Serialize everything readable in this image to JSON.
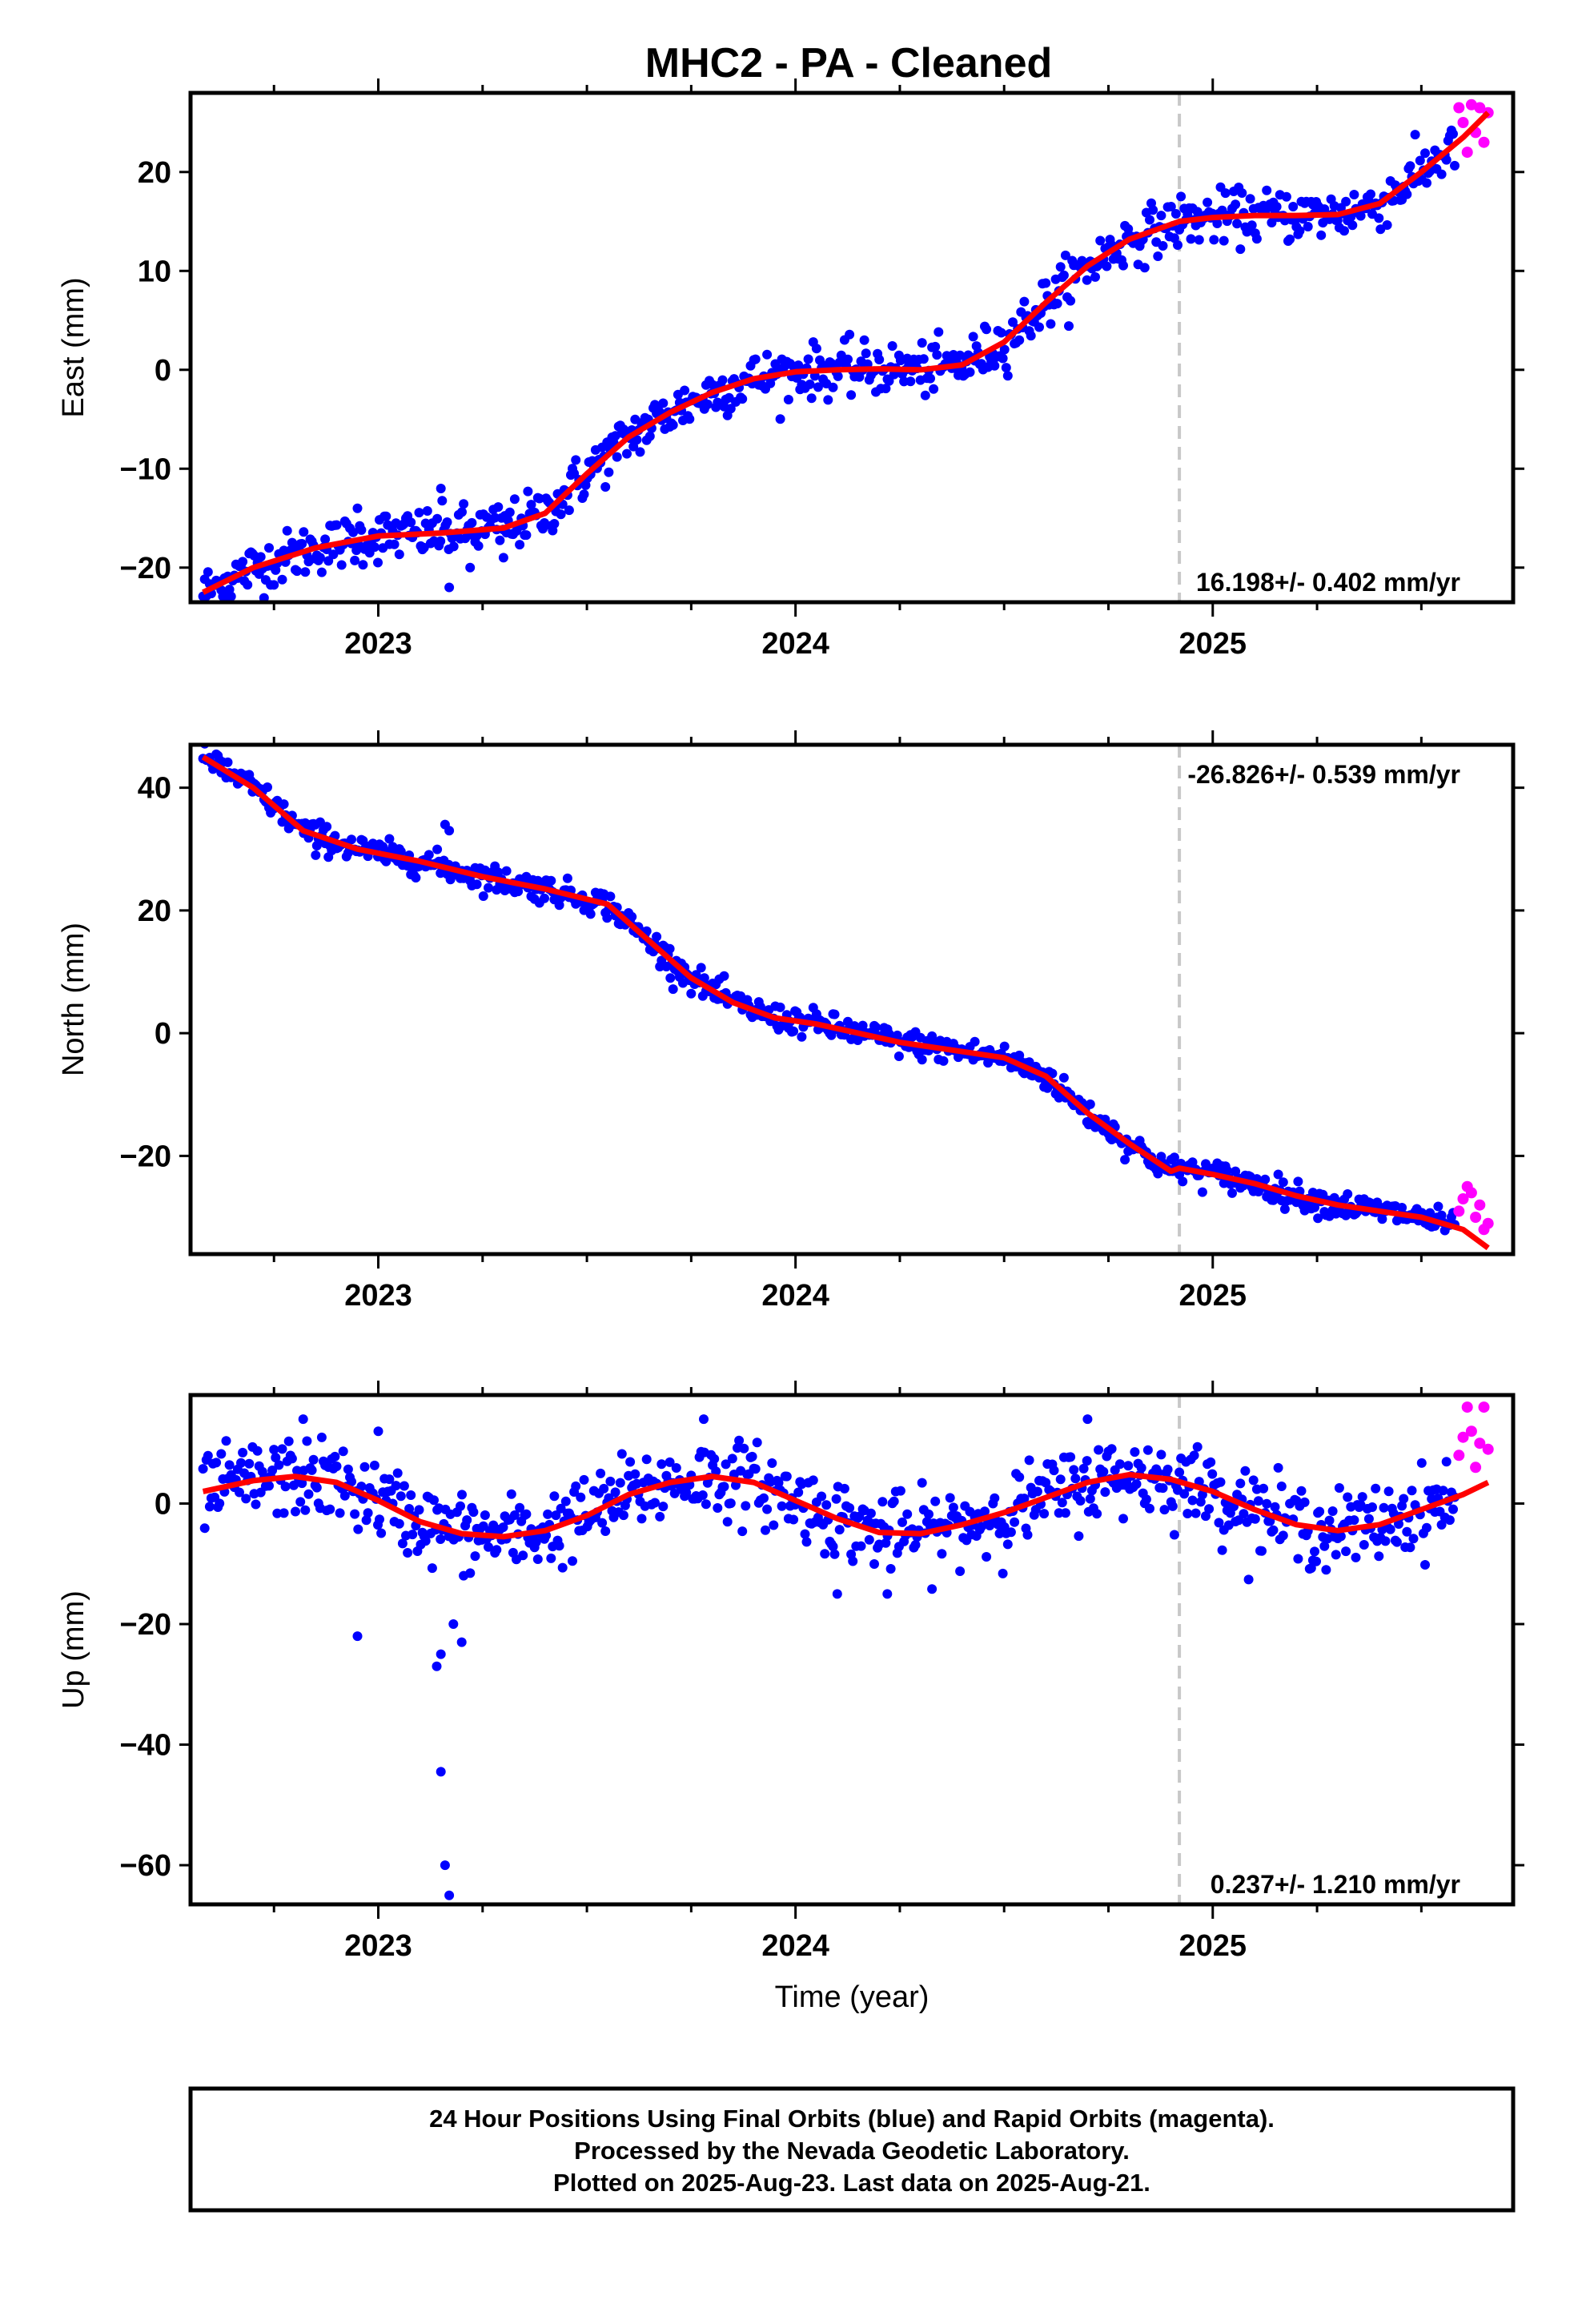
{
  "title": "MHC2  - PA - Cleaned",
  "colors": {
    "final": "#0000ff",
    "rapid": "#ff00ff",
    "model": "#ff0000",
    "break": "#c8c8c8"
  },
  "chart_data": [
    {
      "type": "scatter",
      "ylabel": "East (mm)",
      "xlabel": "",
      "xlim": [
        2022.55,
        2025.72
      ],
      "ylim": [
        -23.5,
        28
      ],
      "yticks": [
        -20,
        -10,
        0,
        10,
        20
      ],
      "xticks": [
        2023,
        2024,
        2025
      ],
      "rate_text": "16.198+/- 0.402 mm/yr",
      "rate_pos": "bottom-right",
      "break_x": 2024.92,
      "model": {
        "x": [
          2022.58,
          2022.7,
          2022.85,
          2023.0,
          2023.15,
          2023.3,
          2023.4,
          2023.5,
          2023.6,
          2023.7,
          2023.8,
          2023.9,
          2024.0,
          2024.1,
          2024.2,
          2024.3,
          2024.4,
          2024.5,
          2024.6,
          2024.7,
          2024.8,
          2024.92,
          2025.0,
          2025.1,
          2025.2,
          2025.3,
          2025.4,
          2025.5,
          2025.6,
          2025.66
        ],
        "y": [
          -22.5,
          -20.0,
          -18.0,
          -16.8,
          -16.5,
          -16.0,
          -14.5,
          -10.5,
          -6.8,
          -4.3,
          -2.3,
          -0.9,
          -0.2,
          0.0,
          0.1,
          0.0,
          0.5,
          2.8,
          6.8,
          10.5,
          13.2,
          15.0,
          15.4,
          15.6,
          15.6,
          15.7,
          16.8,
          20.0,
          23.5,
          26.0
        ]
      },
      "final_noise": 1.3,
      "final_range": [
        2022.58,
        2025.58
      ],
      "rapid": {
        "x": [
          2025.59,
          2025.6,
          2025.61,
          2025.62,
          2025.63,
          2025.64,
          2025.65,
          2025.66
        ],
        "y": [
          26.5,
          25.0,
          22.0,
          26.8,
          24.0,
          26.5,
          23.0,
          26.0
        ]
      },
      "outliers": {
        "x": [
          2022.95,
          2023.15,
          2023.17,
          2023.22,
          2023.3
        ],
        "y": [
          -14,
          -12,
          -22,
          -20,
          -19
        ]
      }
    },
    {
      "type": "scatter",
      "ylabel": "North (mm)",
      "xlabel": "",
      "xlim": [
        2022.55,
        2025.72
      ],
      "ylim": [
        -36,
        47
      ],
      "yticks": [
        -20,
        0,
        20,
        40
      ],
      "xticks": [
        2023,
        2024,
        2025
      ],
      "rate_text": "-26.826+/- 0.539 mm/yr",
      "rate_pos": "top-right",
      "break_x": 2024.92,
      "model": {
        "x": [
          2022.58,
          2022.7,
          2022.82,
          2022.95,
          2023.1,
          2023.25,
          2023.4,
          2023.55,
          2023.65,
          2023.75,
          2023.85,
          2023.95,
          2024.05,
          2024.15,
          2024.25,
          2024.35,
          2024.5,
          2024.6,
          2024.7,
          2024.8,
          2024.9,
          2024.92,
          2025.0,
          2025.1,
          2025.2,
          2025.3,
          2025.4,
          2025.5,
          2025.6,
          2025.66
        ],
        "y": [
          45,
          40,
          33,
          30,
          28,
          25.5,
          23.5,
          21,
          15,
          9,
          5,
          2.5,
          1.5,
          0,
          -1.5,
          -2.5,
          -4,
          -7,
          -13,
          -18,
          -22.5,
          -22,
          -23,
          -24.5,
          -26.5,
          -28,
          -29,
          -30,
          -32,
          -35
        ]
      },
      "final_noise": 1.1,
      "final_range": [
        2022.58,
        2025.58
      ],
      "rapid": {
        "x": [
          2025.59,
          2025.6,
          2025.61,
          2025.62,
          2025.63,
          2025.64,
          2025.65,
          2025.66
        ],
        "y": [
          -29,
          -27,
          -25,
          -26,
          -30,
          -28,
          -32,
          -31
        ]
      },
      "outliers": {
        "x": [
          2023.16,
          2023.17,
          2022.85,
          2023.7
        ],
        "y": [
          34,
          33,
          29,
          9
        ]
      }
    },
    {
      "type": "scatter",
      "ylabel": "Up (mm)",
      "xlabel": "Time (year)",
      "xlim": [
        2022.55,
        2025.72
      ],
      "ylim": [
        -66.5,
        18
      ],
      "yticks": [
        -60,
        -40,
        -20,
        0
      ],
      "xticks": [
        2023,
        2024,
        2025
      ],
      "rate_text": "0.237+/- 1.210 mm/yr",
      "rate_pos": "bottom-right",
      "break_x": 2024.92,
      "model": {
        "x": [
          2022.58,
          2022.7,
          2022.8,
          2022.9,
          2023.0,
          2023.1,
          2023.2,
          2023.3,
          2023.4,
          2023.5,
          2023.6,
          2023.7,
          2023.8,
          2023.9,
          2024.0,
          2024.1,
          2024.2,
          2024.3,
          2024.4,
          2024.5,
          2024.6,
          2024.7,
          2024.8,
          2024.9,
          2025.0,
          2025.1,
          2025.2,
          2025.3,
          2025.4,
          2025.5,
          2025.6,
          2025.66
        ],
        "y": [
          2.0,
          3.8,
          4.5,
          3.5,
          0.5,
          -3.0,
          -5.0,
          -5.5,
          -4.5,
          -2.0,
          1.5,
          3.5,
          4.5,
          3.5,
          0.5,
          -2.5,
          -4.8,
          -5.0,
          -3.5,
          -1.5,
          1.0,
          3.5,
          4.8,
          4.0,
          2.0,
          -1.0,
          -3.5,
          -4.5,
          -3.5,
          -1.0,
          1.5,
          3.5
        ]
      },
      "final_noise": 3.2,
      "final_range": [
        2022.58,
        2025.58
      ],
      "rapid": {
        "x": [
          2025.59,
          2025.6,
          2025.61,
          2025.62,
          2025.63,
          2025.64,
          2025.65,
          2025.66
        ],
        "y": [
          8,
          11,
          16,
          12,
          6,
          10,
          16,
          9
        ]
      },
      "outliers": {
        "x": [
          2022.95,
          2023.14,
          2023.15,
          2023.15,
          2023.16,
          2023.17,
          2023.18,
          2023.2,
          2022.82,
          2023.0,
          2023.78,
          2024.1,
          2024.22,
          2024.7
        ],
        "y": [
          -22,
          -27,
          -25,
          -44.5,
          -60,
          -65,
          -20,
          -23,
          14,
          12,
          14,
          -15,
          -15,
          14
        ]
      }
    }
  ],
  "footer": [
    "24 Hour Positions Using Final Orbits (blue) and Rapid Orbits (magenta).",
    "Processed by the Nevada Geodetic Laboratory.",
    "Plotted on 2025-Aug-23. Last data on 2025-Aug-21."
  ]
}
